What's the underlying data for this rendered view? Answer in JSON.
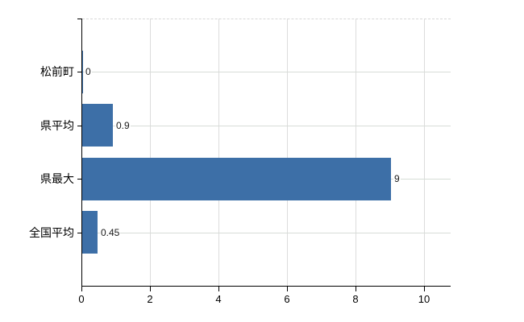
{
  "chart_data": {
    "type": "bar",
    "orientation": "horizontal",
    "title": "",
    "xlabel": "",
    "ylabel": "",
    "categories": [
      "松前町",
      "県平均",
      "県最大",
      "全国平均"
    ],
    "values": [
      0,
      0.9,
      9,
      0.45
    ],
    "value_labels": [
      "0",
      "0.9",
      "9",
      "0.45"
    ],
    "x_ticks": [
      0,
      2,
      4,
      6,
      8,
      10
    ],
    "x_tick_labels": [
      "0",
      "2",
      "4",
      "6",
      "8",
      "10"
    ],
    "xlim": [
      0,
      10.75
    ],
    "grid": true,
    "legend": false,
    "colors": {
      "bar": "#3d6fa7",
      "axis": "#000000",
      "grid_horizontal": "#d7ddd7",
      "grid_vertical": "#dcdcdc",
      "top_border": "#d8d8d8",
      "category_text": "#000000",
      "value_text": "#1a1a1a",
      "tick_text": "#000000",
      "background": "#ffffff"
    }
  }
}
